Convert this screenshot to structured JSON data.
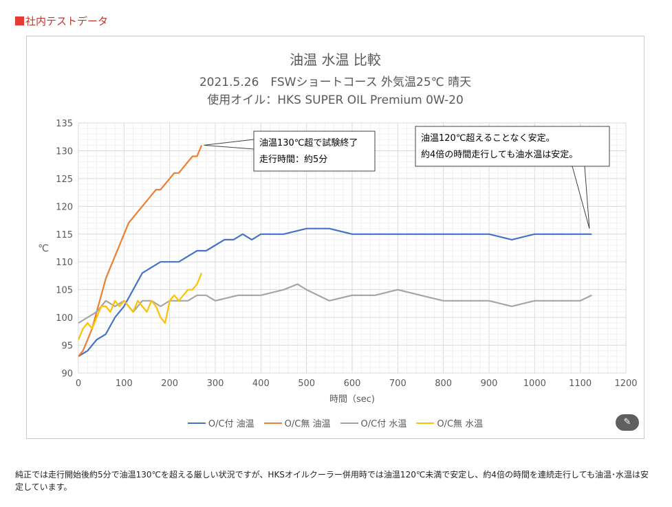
{
  "page": {
    "section_heading": "社内テストデータ",
    "footnote": "純正では走行開始後約5分で油温130℃を超える厳しい状況ですが、HKSオイルクーラー併用時では油温120℃未満で安定し、約4倍の時間を連続走行しても油温･水温は安定しています。",
    "edit_icon": "✎"
  },
  "chart_data": {
    "type": "line",
    "title": "油温 水温 比較",
    "subtitle_1": "2021.5.26　FSWショートコース 外気温25℃ 晴天",
    "subtitle_2": "使用オイル：HKS SUPER OIL Premium 0W-20",
    "xlabel": "時間（sec)",
    "ylabel": "℃",
    "xlim": [
      0,
      1200
    ],
    "ylim": [
      90,
      135
    ],
    "x_ticks": [
      0,
      100,
      200,
      300,
      400,
      500,
      600,
      700,
      800,
      900,
      1000,
      1100,
      1200
    ],
    "y_ticks": [
      90,
      95,
      100,
      105,
      110,
      115,
      120,
      125,
      130,
      135
    ],
    "grid": true,
    "legend_position": "bottom",
    "series": [
      {
        "name": "O/C付 油温",
        "color": "#4472c4",
        "x": [
          0,
          20,
          40,
          60,
          80,
          100,
          120,
          140,
          160,
          180,
          200,
          220,
          240,
          260,
          280,
          300,
          320,
          340,
          360,
          380,
          400,
          450,
          500,
          550,
          600,
          650,
          700,
          750,
          800,
          850,
          900,
          950,
          1000,
          1050,
          1100,
          1125
        ],
        "y": [
          93,
          94,
          96,
          97,
          100,
          102,
          105,
          108,
          109,
          110,
          110,
          110,
          111,
          112,
          112,
          113,
          114,
          114,
          115,
          114,
          115,
          115,
          116,
          116,
          115,
          115,
          115,
          115,
          115,
          115,
          115,
          114,
          115,
          115,
          115,
          115
        ]
      },
      {
        "name": "O/C無 油温",
        "color": "#ed7d31",
        "x": [
          0,
          10,
          20,
          30,
          40,
          50,
          60,
          70,
          80,
          90,
          100,
          110,
          120,
          130,
          140,
          150,
          160,
          170,
          180,
          190,
          200,
          210,
          220,
          230,
          240,
          250,
          260,
          270
        ],
        "y": [
          93,
          94,
          96,
          98,
          101,
          104,
          107,
          109,
          111,
          113,
          115,
          117,
          118,
          119,
          120,
          121,
          122,
          123,
          123,
          124,
          125,
          126,
          126,
          127,
          128,
          129,
          129,
          131
        ]
      },
      {
        "name": "O/C付 水温",
        "color": "#a5a5a5",
        "x": [
          0,
          20,
          40,
          60,
          80,
          100,
          120,
          140,
          160,
          180,
          200,
          220,
          240,
          260,
          280,
          300,
          350,
          400,
          450,
          480,
          500,
          550,
          600,
          650,
          700,
          750,
          800,
          850,
          900,
          950,
          1000,
          1050,
          1100,
          1125
        ],
        "y": [
          99,
          100,
          101,
          103,
          102,
          103,
          101,
          103,
          103,
          102,
          103,
          103,
          103,
          104,
          104,
          103,
          104,
          104,
          105,
          106,
          105,
          103,
          104,
          104,
          105,
          104,
          103,
          103,
          103,
          102,
          103,
          103,
          103,
          104
        ]
      },
      {
        "name": "O/C無 水温",
        "color": "#ffc000",
        "x": [
          0,
          10,
          20,
          30,
          40,
          50,
          60,
          70,
          80,
          90,
          100,
          110,
          120,
          130,
          140,
          150,
          160,
          170,
          180,
          190,
          200,
          210,
          220,
          230,
          240,
          250,
          260,
          270
        ],
        "y": [
          96,
          98,
          99,
          98,
          100,
          102,
          102,
          101,
          103,
          102,
          103,
          102,
          101,
          103,
          102,
          101,
          103,
          102,
          100,
          99,
          103,
          104,
          103,
          104,
          105,
          105,
          106,
          108
        ]
      }
    ],
    "annotations": [
      {
        "lines": [
          "油温130℃超で試験終了",
          "走行時間：約5分"
        ],
        "target_x": 275,
        "target_y": 131
      },
      {
        "lines": [
          "油温120℃超えることなく安定。",
          "約4倍の時間走行しても油水温は安定。"
        ],
        "target_x": 1120,
        "target_y": 116
      }
    ]
  }
}
